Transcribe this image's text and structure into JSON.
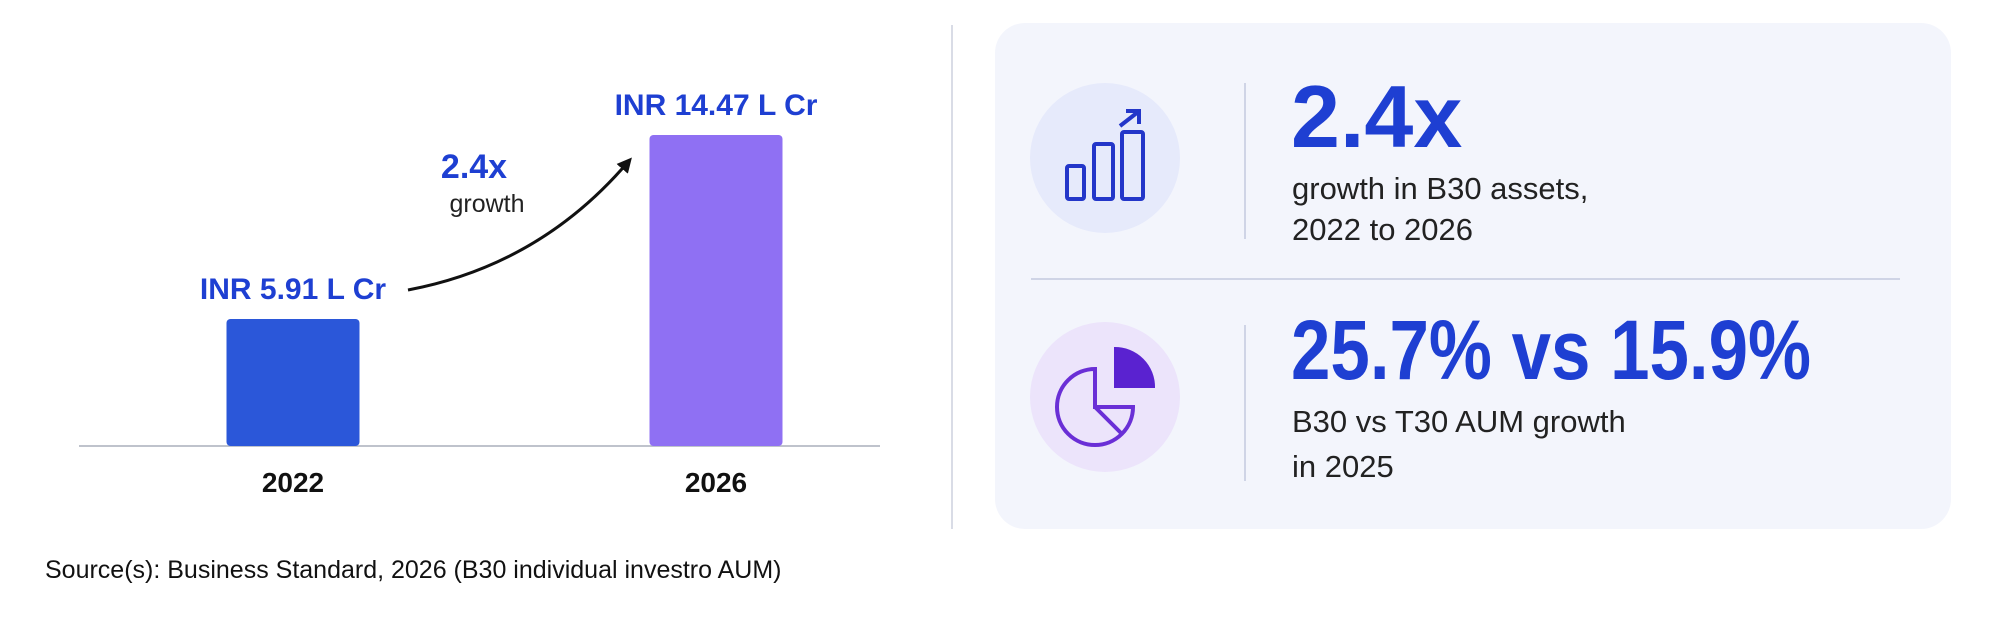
{
  "chart_data": {
    "type": "bar",
    "categories": [
      "2022",
      "2026"
    ],
    "values": [
      5.91,
      14.47
    ],
    "value_labels": [
      "INR 5.91 L Cr",
      "INR 14.47 L Cr"
    ],
    "colors": [
      "#2b57d9",
      "#8f70f3"
    ],
    "annotation": {
      "text": "2.4x",
      "subtext": "growth"
    }
  },
  "stats": [
    {
      "value": "2.4x",
      "lines": [
        "growth in B30 assets,",
        "2022 to 2026"
      ]
    },
    {
      "value": "25.7% vs 15.9%",
      "lines": [
        "B30 vs T30 AUM growth",
        "in 2025"
      ]
    }
  ],
  "source": "Source(s): Business Standard, 2026 (B30 individual investro AUM)"
}
